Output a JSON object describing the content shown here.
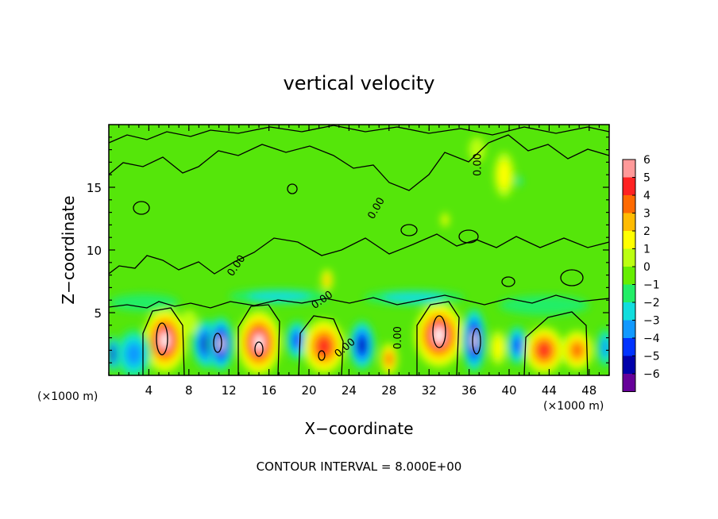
{
  "chart_data": {
    "type": "heatmap",
    "title": "vertical velocity",
    "xlabel": "X−coordinate",
    "ylabel": "Z−coordinate",
    "x_unit_left": "(×1000 m)",
    "x_unit_right": "(×1000 m)",
    "xlim": [
      0,
      50
    ],
    "ylim": [
      0,
      20
    ],
    "x_ticks": [
      4,
      8,
      12,
      16,
      20,
      24,
      28,
      32,
      36,
      40,
      44,
      48
    ],
    "y_ticks": [
      5,
      10,
      15
    ],
    "footer": "CONTOUR INTERVAL = 8.000E+00",
    "contour_labels": [
      {
        "text": "0.00",
        "x": 13,
        "y": 8.6,
        "rot": -55
      },
      {
        "text": "0.00",
        "x": 21.5,
        "y": 5.8,
        "rot": -35
      },
      {
        "text": "0.00",
        "x": 23.8,
        "y": 2.0,
        "rot": -40
      },
      {
        "text": "0.00",
        "x": 29.2,
        "y": 3.0,
        "rot": -90
      },
      {
        "text": "0.00",
        "x": 27.0,
        "y": 13.2,
        "rot": -60
      },
      {
        "text": "0.00",
        "x": 37.2,
        "y": 16.8,
        "rot": -90
      }
    ],
    "colorbar": {
      "labels": [
        "6",
        "5",
        "4",
        "3",
        "2",
        "1",
        "0",
        "−1",
        "−2",
        "−3",
        "−4",
        "−5",
        "−6"
      ],
      "colors": [
        "#ff9999",
        "#ff2222",
        "#ff6a00",
        "#ffbb00",
        "#ffff00",
        "#bbff11",
        "#66ee00",
        "#22ee66",
        "#11dddd",
        "#1199ff",
        "#0033ff",
        "#0000aa",
        "#660099"
      ]
    },
    "cells": [
      {
        "x": 5.6,
        "y": 2.8,
        "v": 6,
        "rx": 2.2,
        "ry": 2.6
      },
      {
        "x": 9.8,
        "y": 2.5,
        "v": -5,
        "rx": 1.5,
        "ry": 2.0
      },
      {
        "x": 11.2,
        "y": 2.5,
        "v": -6,
        "rx": 1.3,
        "ry": 2.2
      },
      {
        "x": 15.0,
        "y": 2.6,
        "v": 6,
        "rx": 2.2,
        "ry": 2.6
      },
      {
        "x": 18.8,
        "y": 2.8,
        "v": -4,
        "rx": 1.1,
        "ry": 1.6
      },
      {
        "x": 21.5,
        "y": 2.3,
        "v": 5,
        "rx": 2.1,
        "ry": 2.2
      },
      {
        "x": 25.3,
        "y": 2.4,
        "v": -5,
        "rx": 1.3,
        "ry": 2.0
      },
      {
        "x": 28.0,
        "y": 1.3,
        "v": 4,
        "rx": 0.9,
        "ry": 1.3
      },
      {
        "x": 33.0,
        "y": 3.2,
        "v": 6,
        "rx": 2.5,
        "ry": 2.6
      },
      {
        "x": 36.5,
        "y": 2.8,
        "v": -6,
        "rx": 1.2,
        "ry": 2.6
      },
      {
        "x": 40.8,
        "y": 2.4,
        "v": -4,
        "rx": 1.0,
        "ry": 1.6
      },
      {
        "x": 43.5,
        "y": 2.0,
        "v": 5,
        "rx": 2.0,
        "ry": 1.9
      },
      {
        "x": 46.8,
        "y": 2.0,
        "v": 4,
        "rx": 1.6,
        "ry": 1.6
      },
      {
        "x": 2.5,
        "y": 1.7,
        "v": -3,
        "rx": 1.8,
        "ry": 2.0
      },
      {
        "x": 0.4,
        "y": 1.7,
        "v": -5,
        "rx": 0.6,
        "ry": 1.5
      },
      {
        "x": 49.6,
        "y": 2.2,
        "v": -3,
        "rx": 0.8,
        "ry": 1.6
      },
      {
        "x": 8.0,
        "y": 4.2,
        "v": 1,
        "rx": 0.9,
        "ry": 1.0
      },
      {
        "x": 38.9,
        "y": 2.2,
        "v": 2,
        "rx": 0.8,
        "ry": 1.4
      },
      {
        "x": 17.0,
        "y": 6.3,
        "v": -2,
        "rx": 5.0,
        "ry": 0.6
      },
      {
        "x": 30.5,
        "y": 6.2,
        "v": -2,
        "rx": 5.0,
        "ry": 0.6
      },
      {
        "x": 43.5,
        "y": 5.6,
        "v": -1,
        "rx": 4.5,
        "ry": 0.8
      },
      {
        "x": 3.5,
        "y": 5.8,
        "v": -1,
        "rx": 3.5,
        "ry": 0.7
      },
      {
        "x": 21.8,
        "y": 7.6,
        "v": 3,
        "rx": 0.6,
        "ry": 0.9
      },
      {
        "x": 39.5,
        "y": 16.0,
        "v": 2,
        "rx": 1.0,
        "ry": 1.8
      },
      {
        "x": 33.6,
        "y": 12.4,
        "v": 2,
        "rx": 0.4,
        "ry": 0.6
      },
      {
        "x": 41.0,
        "y": 15.5,
        "v": -2,
        "rx": 0.3,
        "ry": 0.4
      },
      {
        "x": 36.8,
        "y": 18.0,
        "v": 1,
        "rx": 0.8,
        "ry": 1.0
      }
    ]
  }
}
